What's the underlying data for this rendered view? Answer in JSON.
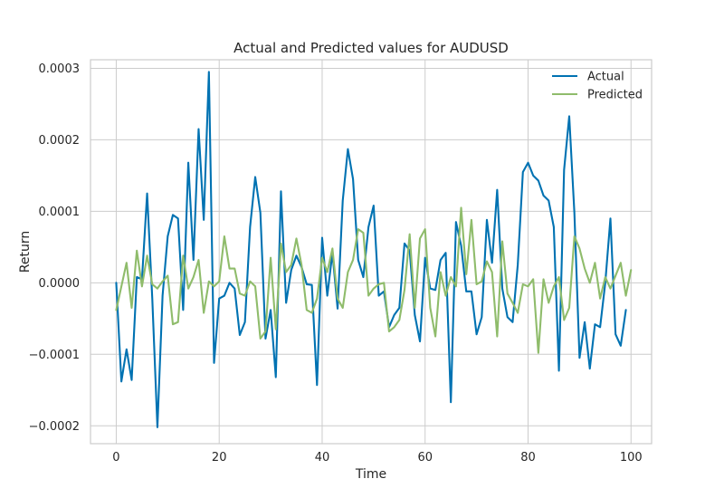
{
  "chart_data": {
    "type": "line",
    "title": "Actual and Predicted values for AUDUSD",
    "xlabel": "Time",
    "ylabel": "Return",
    "xlim": [
      -5,
      104
    ],
    "ylim": [
      -0.000225,
      0.000312
    ],
    "xticks": [
      0,
      20,
      40,
      60,
      80,
      100
    ],
    "xtick_labels": [
      "0",
      "20",
      "40",
      "60",
      "80",
      "100"
    ],
    "yticks": [
      -0.0002,
      -0.0001,
      0.0,
      0.0001,
      0.0002,
      0.0003
    ],
    "ytick_labels": [
      "−0.0002",
      "−0.0001",
      "0.0000",
      "0.0001",
      "0.0002",
      "0.0003"
    ],
    "grid": true,
    "legend_position": "top-right",
    "series": [
      {
        "name": "Actual",
        "color": "#0072b2",
        "values": [
          0.0,
          -0.000138,
          -9.3e-05,
          -0.000136,
          8e-06,
          5e-06,
          0.000125,
          -2.2e-05,
          -0.000202,
          -1.8e-05,
          6.5e-05,
          9.5e-05,
          9e-05,
          -3.8e-05,
          0.000168,
          3.2e-05,
          0.000215,
          8.8e-05,
          0.000295,
          -0.000112,
          -2.2e-05,
          -1.8e-05,
          0.0,
          -8e-06,
          -7.3e-05,
          -5.5e-05,
          7.8e-05,
          0.000148,
          9.8e-05,
          -7.8e-05,
          -3.8e-05,
          -0.000132,
          0.000128,
          -2.8e-05,
          1.8e-05,
          3.8e-05,
          2.2e-05,
          -2e-06,
          -3e-06,
          -0.000143,
          6.3e-05,
          -1.8e-05,
          4.2e-05,
          -3.6e-05,
          0.000115,
          0.000187,
          0.000145,
          3.2e-05,
          8e-06,
          7.8e-05,
          0.000108,
          -1.8e-05,
          -1.2e-05,
          -6.2e-05,
          -4.5e-05,
          -3.5e-05,
          5.5e-05,
          4.5e-05,
          -4.5e-05,
          -8.2e-05,
          3.5e-05,
          -8e-06,
          -1e-05,
          3.2e-05,
          4.2e-05,
          -0.000167,
          8.5e-05,
          5.2e-05,
          -1.2e-05,
          -1.2e-05,
          -7.2e-05,
          -4.8e-05,
          8.8e-05,
          2.8e-05,
          0.00013,
          -8e-06,
          -4.8e-05,
          -5.5e-05,
          2.5e-05,
          0.000155,
          0.000168,
          0.00015,
          0.000143,
          0.000122,
          0.000115,
          7.8e-05,
          -0.000123,
          0.000158,
          0.000233,
          9.8e-05,
          -0.000105,
          -5.5e-05,
          -0.00012,
          -5.8e-05,
          -6.2e-05,
          0.0,
          9e-05,
          -7.2e-05,
          -8.8e-05,
          -3.8e-05
        ]
      },
      {
        "name": "Predicted",
        "color": "#8fbc6b",
        "values": [
          -3.8e-05,
          -5e-06,
          2.8e-05,
          -3.5e-05,
          4.5e-05,
          -5e-06,
          3.8e-05,
          -2e-06,
          -8e-06,
          2e-06,
          1e-05,
          -5.8e-05,
          -5.5e-05,
          3.8e-05,
          -8e-06,
          8e-06,
          3.2e-05,
          -4.2e-05,
          2e-06,
          -5e-06,
          2e-06,
          6.5e-05,
          2e-05,
          2e-05,
          -1.5e-05,
          -1.8e-05,
          2e-06,
          -5e-06,
          -7.8e-05,
          -6.8e-05,
          3.5e-05,
          -6.5e-05,
          5.5e-05,
          1.5e-05,
          2.5e-05,
          6.2e-05,
          2.5e-05,
          -3.8e-05,
          -4.2e-05,
          -2.2e-05,
          3.5e-05,
          1.5e-05,
          4.8e-05,
          -2.2e-05,
          -3.5e-05,
          1.5e-05,
          3.2e-05,
          7.5e-05,
          7e-05,
          -1.8e-05,
          -8e-06,
          -2e-06,
          0.0,
          -6.8e-05,
          -6.2e-05,
          -5.2e-05,
          -1e-05,
          6.8e-05,
          -3.5e-05,
          6.2e-05,
          7.5e-05,
          -3.5e-05,
          -7.5e-05,
          1.5e-05,
          -1.8e-05,
          8e-06,
          -5e-06,
          0.000105,
          1.2e-05,
          8.8e-05,
          -2e-06,
          2e-06,
          3e-05,
          1.5e-05,
          -7.5e-05,
          5.8e-05,
          -1.5e-05,
          -2.8e-05,
          -4.2e-05,
          -2e-06,
          -5e-06,
          5e-06,
          -9.8e-05,
          5e-06,
          -2.8e-05,
          -5e-06,
          8e-06,
          -5.2e-05,
          -3.5e-05,
          6.5e-05,
          4.8e-05,
          2e-05,
          0.0,
          2.8e-05,
          -2.2e-05,
          8e-06,
          -8e-06,
          1e-05,
          2.8e-05,
          -1.8e-05,
          1.8e-05
        ]
      }
    ]
  }
}
